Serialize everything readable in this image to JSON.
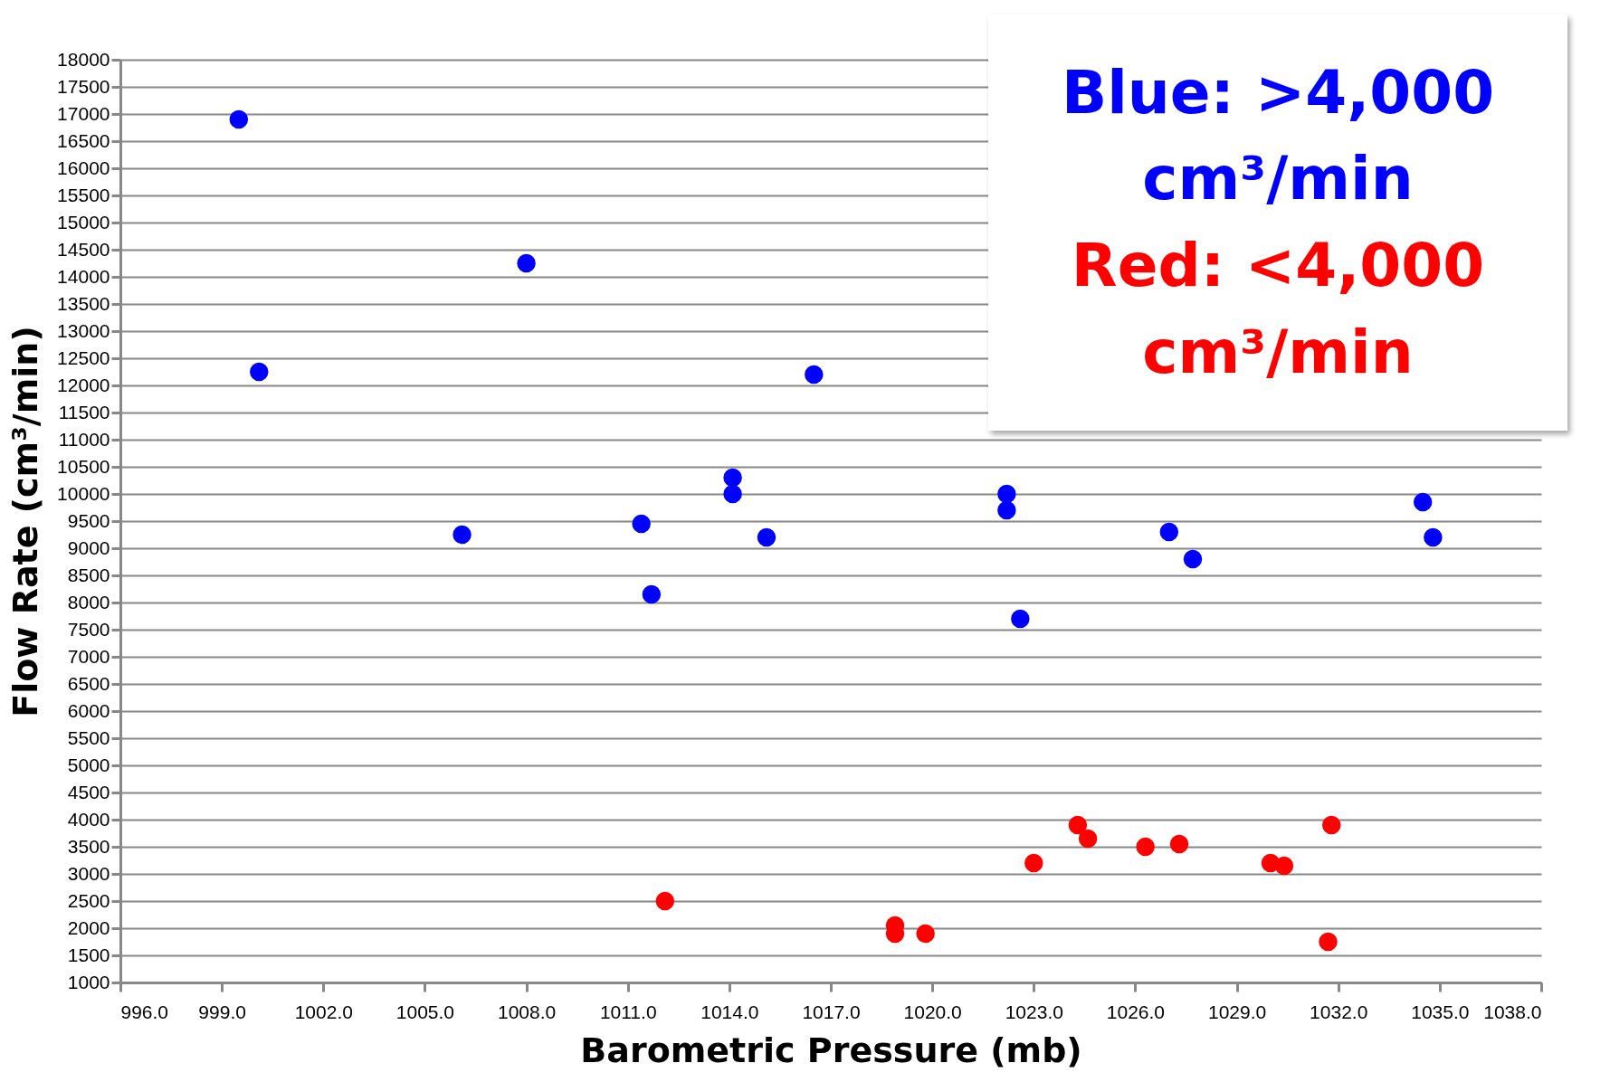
{
  "chart_data": {
    "type": "scatter",
    "xlabel": "Barometric Pressure (mb)",
    "ylabel": "Flow Rate (cm³/min)",
    "xlim": [
      996,
      1038
    ],
    "xticks": [
      {
        "value": 996,
        "label": "996.0"
      },
      {
        "value": 999,
        "label": "999.0"
      },
      {
        "value": 1002,
        "label": "1002.0"
      },
      {
        "value": 1005,
        "label": "1005.0"
      },
      {
        "value": 1008,
        "label": "1008.0"
      },
      {
        "value": 1011,
        "label": "1011.0"
      },
      {
        "value": 1014,
        "label": "1014.0"
      },
      {
        "value": 1017,
        "label": "1017.0"
      },
      {
        "value": 1020,
        "label": "1020.0"
      },
      {
        "value": 1023,
        "label": "1023.0"
      },
      {
        "value": 1026,
        "label": "1026.0"
      },
      {
        "value": 1029,
        "label": "1029.0"
      },
      {
        "value": 1032,
        "label": "1032.0"
      },
      {
        "value": 1035,
        "label": "1035.0"
      },
      {
        "value": 1038,
        "label": "1038.0"
      }
    ],
    "ylim": [
      1000,
      18000
    ],
    "yticks": [
      1000,
      1500,
      2000,
      2500,
      3000,
      3500,
      4000,
      4500,
      5000,
      5500,
      6000,
      6500,
      7000,
      7500,
      8000,
      8500,
      9000,
      9500,
      10000,
      10500,
      11000,
      11500,
      12000,
      12500,
      13000,
      13500,
      14000,
      14500,
      15000,
      15500,
      16000,
      16500,
      17000,
      17500,
      18000
    ],
    "grid": "y",
    "marker": "circle",
    "legend": false,
    "annotations": [
      "Blue: >4,000 cm³/min",
      "Red: <4,000 cm³/min"
    ],
    "series": [
      {
        "color": "#0000ff",
        "x": [
          999.5,
          1000.1,
          1008.0,
          1006.1,
          1011.4,
          1011.7,
          1014.1,
          1014.1,
          1015.1,
          1016.5,
          1022.2,
          1022.2,
          1022.6,
          1027.0,
          1027.7,
          1034.5,
          1034.8
        ],
        "values": [
          16900,
          12250,
          14250,
          9250,
          9450,
          8150,
          10300,
          10000,
          9200,
          12200,
          10000,
          9700,
          7700,
          9300,
          8800,
          9850,
          9200
        ]
      },
      {
        "color": "#ff0000",
        "x": [
          1012.1,
          1018.9,
          1018.9,
          1019.8,
          1023.0,
          1024.3,
          1024.6,
          1026.3,
          1027.3,
          1030.0,
          1030.4,
          1031.8,
          1031.7
        ],
        "values": [
          2500,
          2050,
          1900,
          1900,
          3200,
          3900,
          3650,
          3500,
          3550,
          3200,
          3150,
          3900,
          1750
        ]
      }
    ]
  }
}
